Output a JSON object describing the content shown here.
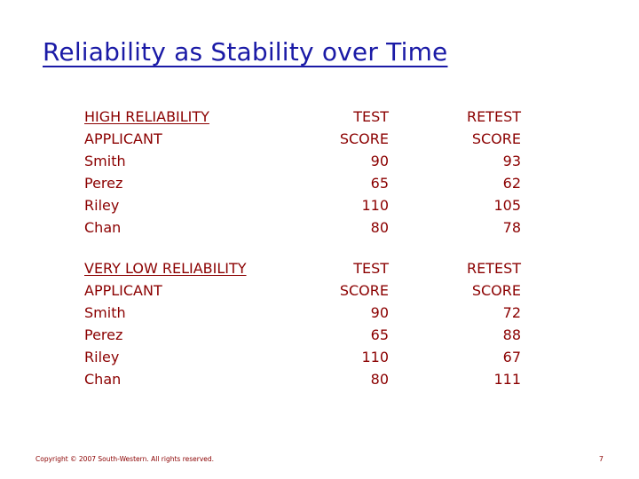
{
  "slide": {
    "title": "Reliability as Stability over Time",
    "copyright": "Copyright © 2007 South-Western. All rights reserved.",
    "page_number": "7"
  },
  "high": {
    "section_label": "HIGH RELIABILITY",
    "col1_header": "APPLICANT",
    "col2_header_1": "TEST",
    "col2_header_2": "SCORE",
    "col3_header_1": "RETEST",
    "col3_header_2": "SCORE",
    "rows": [
      {
        "name": "Smith",
        "test": "90",
        "retest": "93"
      },
      {
        "name": "Perez",
        "test": "65",
        "retest": "62"
      },
      {
        "name": "Riley",
        "test": "110",
        "retest": "105"
      },
      {
        "name": "Chan",
        "test": "80",
        "retest": "78"
      }
    ]
  },
  "low": {
    "section_label": "VERY LOW RELIABILITY",
    "col1_header": "APPLICANT",
    "col2_header_1": "TEST",
    "col2_header_2": "SCORE",
    "col3_header_1": "RETEST",
    "col3_header_2": "SCORE",
    "rows": [
      {
        "name": "Smith",
        "test": "90",
        "retest": "72"
      },
      {
        "name": "Perez",
        "test": "65",
        "retest": "88"
      },
      {
        "name": "Riley",
        "test": "110",
        "retest": "67"
      },
      {
        "name": "Chan",
        "test": "80",
        "retest": "111"
      }
    ]
  }
}
